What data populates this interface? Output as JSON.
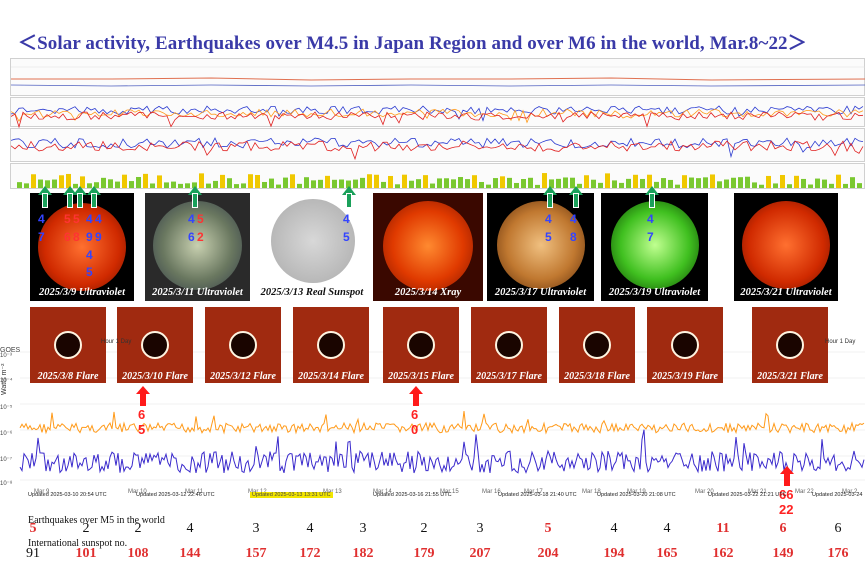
{
  "title": "＜Solar activity, Earthquakes over M4.5 in Japan Region and over M6 in the world, Mar.8~22＞",
  "colors": {
    "title": "#3a3aa8",
    "marker": "#1aa05a",
    "quake_num_blue": "#3344ff",
    "quake_num_red": "#ff3333",
    "arrow": "#ff1a1a",
    "goes_short": "#ff9a1a",
    "goes_long": "#3a2acc",
    "highlight_red": "#e03030"
  },
  "sun_images": [
    {
      "caption": "2025/3/9 Ultraviolet",
      "type": "ultraviolet-red"
    },
    {
      "caption": "2025/3/11 Ultraviolet",
      "type": "ultraviolet-composite"
    },
    {
      "caption": "2025/3/13 Real Sunspot",
      "type": "sunspot-white"
    },
    {
      "caption": "2025/3/14 Xray",
      "type": "xray-red"
    },
    {
      "caption": "2025/3/17 Ultraviolet",
      "type": "ultraviolet-gold"
    },
    {
      "caption": "2025/3/19 Ultraviolet",
      "type": "ultraviolet-green"
    },
    {
      "caption": "2025/3/21 Ultraviolet",
      "type": "ultraviolet-red"
    }
  ],
  "japan_quake_numbers": {
    "img1": [
      "4",
      "7",
      "5",
      "5",
      "6",
      "8",
      "4",
      "4",
      "9",
      "9",
      "4",
      "5"
    ],
    "img2": [
      "4",
      "5",
      "6",
      "2"
    ],
    "img3": [
      "4",
      "5"
    ],
    "img5": [
      "4",
      "5",
      "4",
      "8"
    ],
    "img6": [
      "4",
      "7"
    ]
  },
  "flare_images": [
    {
      "caption": "2025/3/8 Flare"
    },
    {
      "caption": "2025/3/10 Flare"
    },
    {
      "caption": "2025/3/12 Flare"
    },
    {
      "caption": "2025/3/14 Flare"
    },
    {
      "caption": "2025/3/15 Flare"
    },
    {
      "caption": "2025/3/17 Flare"
    },
    {
      "caption": "2025/3/18 Flare"
    },
    {
      "caption": "2025/3/19 Flare"
    },
    {
      "caption": "2025/3/21 Flare"
    }
  ],
  "world_quake_arrows": [
    {
      "value": "6\n5"
    },
    {
      "value": "6\n0"
    },
    {
      "value": "66\n22"
    }
  ],
  "goes": {
    "label": "GOES",
    "y_unit": "Watts m⁻²",
    "y_ticks": [
      "10⁻³",
      "10⁻⁴",
      "10⁻⁵",
      "10⁻⁶",
      "10⁻⁷",
      "10⁻⁸"
    ],
    "x_ticks": [
      "Mar 9",
      "Mar 10",
      "Mar 11",
      "Mar 12",
      "Mar 13",
      "Mar 14",
      "Mar 15",
      "Mar 16",
      "Mar 17",
      "Mar 18",
      "Mar 19",
      "Mar 20",
      "Mar 21",
      "Mar 22",
      "Mar 2"
    ],
    "hour_label": "Hour 1 Day",
    "updates": [
      "Updated 2025-03-10 20:54 UTC",
      "Updated 2025-03-12 22:46 UTC",
      "Updated 2025-03-13 13:31 UTC",
      "Updated 2025-03-16 21:55 UTC",
      "Updated 2025-03-18 21:40 UTC",
      "Updated 2025-03-20 21:08 UTC",
      "Updated 2025-03-22 21:21 UTC",
      "Updated 2025-03-24"
    ]
  },
  "table": {
    "earthquakes_label": "Earthquakes over M5 in the world",
    "sunspot_label": "International sunspot no.",
    "earthquakes": [
      {
        "v": "5",
        "hl": true
      },
      {
        "v": "2",
        "hl": false
      },
      {
        "v": "2",
        "hl": false
      },
      {
        "v": "4",
        "hl": false
      },
      {
        "v": "3",
        "hl": false
      },
      {
        "v": "4",
        "hl": false
      },
      {
        "v": "3",
        "hl": false
      },
      {
        "v": "2",
        "hl": false
      },
      {
        "v": "3",
        "hl": false
      },
      {
        "v": "5",
        "hl": true
      },
      {
        "v": "4",
        "hl": false
      },
      {
        "v": "4",
        "hl": false
      },
      {
        "v": "11",
        "hl": true
      },
      {
        "v": "6",
        "hl": true
      },
      {
        "v": "6",
        "hl": false
      }
    ],
    "sunspots": [
      {
        "v": "91",
        "hl": false
      },
      {
        "v": "101",
        "hl": true
      },
      {
        "v": "108",
        "hl": true
      },
      {
        "v": "144",
        "hl": true
      },
      {
        "v": "157",
        "hl": true
      },
      {
        "v": "172",
        "hl": true
      },
      {
        "v": "182",
        "hl": true
      },
      {
        "v": "179",
        "hl": true
      },
      {
        "v": "207",
        "hl": true
      },
      {
        "v": "204",
        "hl": true
      },
      {
        "v": "194",
        "hl": true
      },
      {
        "v": "165",
        "hl": true
      },
      {
        "v": "162",
        "hl": true
      },
      {
        "v": "149",
        "hl": true
      },
      {
        "v": "176",
        "hl": true
      }
    ]
  }
}
